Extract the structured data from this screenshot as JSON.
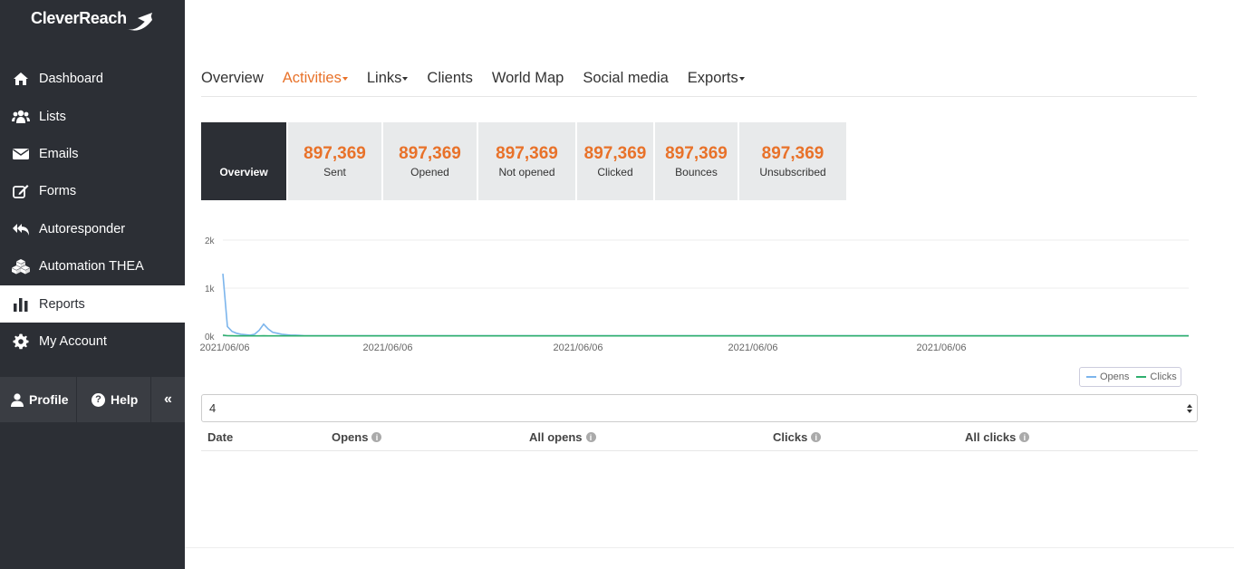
{
  "brand": {
    "name": "CleverReach",
    "accent": "#e8722a",
    "sidebar_bg": "#2c2f35"
  },
  "sidebar": {
    "items": [
      {
        "label": "Dashboard",
        "icon": "home-icon"
      },
      {
        "label": "Lists",
        "icon": "users-icon"
      },
      {
        "label": "Emails",
        "icon": "envelope-icon"
      },
      {
        "label": "Forms",
        "icon": "edit-icon"
      },
      {
        "label": "Autoresponder",
        "icon": "reply-all-icon"
      },
      {
        "label": "Automation THEA",
        "icon": "cubes-icon"
      },
      {
        "label": "Reports",
        "icon": "bar-chart-icon",
        "active": true
      },
      {
        "label": "My Account",
        "icon": "gear-icon"
      }
    ],
    "footer": {
      "profile": "Profile",
      "help": "Help",
      "collapse": "«"
    }
  },
  "tabs": [
    {
      "label": "Overview"
    },
    {
      "label": "Activities",
      "active": true,
      "dropdown": true
    },
    {
      "label": "Links",
      "dropdown": true
    },
    {
      "label": "Clients"
    },
    {
      "label": "World Map"
    },
    {
      "label": "Social media"
    },
    {
      "label": "Exports",
      "dropdown": true
    }
  ],
  "stats": {
    "overview": "Overview",
    "cards": [
      {
        "value": "897,369",
        "label": "Sent"
      },
      {
        "value": "897,369",
        "label": "Opened"
      },
      {
        "value": "897,369",
        "label": "Not opened"
      },
      {
        "value": "897,369",
        "label": "Clicked"
      },
      {
        "value": "897,369",
        "label": "Bounces"
      },
      {
        "value": "897,369",
        "label": "Unsubscribed"
      }
    ]
  },
  "chart_data": {
    "type": "line",
    "y_ticks": [
      "2k",
      "1k",
      "0k"
    ],
    "ylim": [
      0,
      2000
    ],
    "x_ticks": [
      "2021/06/06",
      "2021/06/06",
      "2021/06/06",
      "2021/06/06",
      "2021/06/06"
    ],
    "series": [
      {
        "name": "Opens",
        "color": "#7cb5ec",
        "values": [
          1300,
          200,
          100,
          60,
          40,
          30,
          20,
          40,
          120,
          250,
          150,
          80,
          60,
          40,
          30,
          20,
          20,
          15,
          10,
          10,
          10,
          10,
          10,
          10,
          10,
          10,
          10,
          10,
          10,
          10,
          10,
          10,
          10,
          10,
          10,
          10,
          10,
          10,
          10,
          10
        ]
      },
      {
        "name": "Clicks",
        "color": "#2eaf6e",
        "values": [
          20,
          10,
          8,
          6,
          5,
          5,
          5,
          5,
          6,
          8,
          6,
          5,
          5,
          5,
          5,
          5,
          5,
          5,
          5,
          5,
          5,
          5,
          5,
          5,
          5,
          5,
          5,
          5,
          5,
          5,
          5,
          5,
          5,
          5,
          5,
          5,
          5,
          5,
          5,
          5
        ]
      }
    ],
    "legend": "bottom-right"
  },
  "select": {
    "value": "4"
  },
  "table": {
    "columns": [
      {
        "label": "Date",
        "info": false
      },
      {
        "label": "Opens",
        "info": true
      },
      {
        "label": "All opens",
        "info": true
      },
      {
        "label": "Clicks",
        "info": true
      },
      {
        "label": "All clicks",
        "info": true
      }
    ]
  }
}
